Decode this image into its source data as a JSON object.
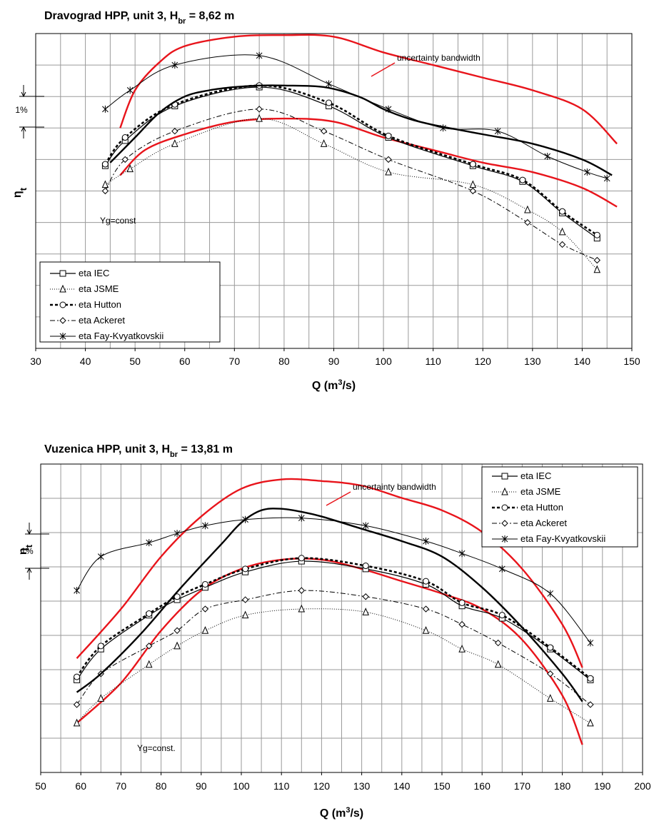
{
  "chart_data": [
    {
      "type": "line",
      "title": "Dravograd HPP, unit 3, H",
      "title_sub": "br",
      "title_tail": " = 8,62 m",
      "xlabel": "Q (m",
      "xlabel_sup": "3",
      "xlabel_tail": "/s)",
      "ylabel": "η",
      "ylabel_sub": "t",
      "xlim": [
        30,
        150
      ],
      "xticks": [
        30,
        40,
        50,
        60,
        70,
        80,
        90,
        100,
        110,
        120,
        130,
        140,
        150
      ],
      "ylim": [
        0,
        10
      ],
      "grid": true,
      "legend_position": "bottom-left",
      "annotations": {
        "bandwidth": "uncertainty bandwidth",
        "scale": "1%",
        "yg": "Yg=const"
      },
      "legend": [
        "eta IEC",
        "eta JSME",
        "eta Hutton",
        "eta Ackeret",
        "eta Fay-Kvyatkovskii"
      ],
      "band_upper": [
        [
          47,
          7.0
        ],
        [
          50,
          8.2
        ],
        [
          55,
          9.1
        ],
        [
          60,
          9.6
        ],
        [
          70,
          9.9
        ],
        [
          80,
          9.95
        ],
        [
          90,
          9.9
        ],
        [
          100,
          9.4
        ],
        [
          110,
          9.0
        ],
        [
          120,
          8.6
        ],
        [
          130,
          8.2
        ],
        [
          140,
          7.6
        ],
        [
          147,
          6.5
        ]
      ],
      "envelope": [
        [
          45,
          5.9
        ],
        [
          50,
          6.7
        ],
        [
          55,
          7.5
        ],
        [
          60,
          8.0
        ],
        [
          65,
          8.2
        ],
        [
          70,
          8.3
        ],
        [
          75,
          8.35
        ],
        [
          80,
          8.35
        ],
        [
          88,
          8.3
        ],
        [
          95,
          8.0
        ],
        [
          100,
          7.6
        ],
        [
          105,
          7.3
        ],
        [
          110,
          7.1
        ],
        [
          120,
          6.8
        ],
        [
          130,
          6.5
        ],
        [
          140,
          6.0
        ],
        [
          146,
          5.5
        ]
      ],
      "band_lower": [
        [
          47,
          5.5
        ],
        [
          52,
          6.3
        ],
        [
          60,
          6.8
        ],
        [
          70,
          7.2
        ],
        [
          80,
          7.3
        ],
        [
          90,
          7.2
        ],
        [
          100,
          6.7
        ],
        [
          110,
          6.3
        ],
        [
          120,
          5.9
        ],
        [
          130,
          5.6
        ],
        [
          140,
          5.1
        ],
        [
          147,
          4.5
        ]
      ],
      "series": [
        {
          "name": "eta IEC",
          "marker": "square",
          "points": [
            [
              44,
              5.8
            ],
            [
              48,
              6.6
            ],
            [
              58,
              7.7
            ],
            [
              75,
              8.3
            ],
            [
              89,
              7.7
            ],
            [
              101,
              6.7
            ],
            [
              118,
              5.8
            ],
            [
              128,
              5.3
            ],
            [
              136,
              4.3
            ],
            [
              143,
              3.5
            ]
          ]
        },
        {
          "name": "eta JSME",
          "marker": "triangle",
          "points": [
            [
              44,
              5.2
            ],
            [
              49,
              5.7
            ],
            [
              58,
              6.5
            ],
            [
              75,
              7.3
            ],
            [
              88,
              6.5
            ],
            [
              101,
              5.6
            ],
            [
              118,
              5.2
            ],
            [
              129,
              4.4
            ],
            [
              136,
              3.7
            ],
            [
              143,
              2.5
            ]
          ]
        },
        {
          "name": "eta Hutton",
          "marker": "circle",
          "points": [
            [
              44,
              5.85
            ],
            [
              48,
              6.7
            ],
            [
              58,
              7.75
            ],
            [
              75,
              8.35
            ],
            [
              89,
              7.8
            ],
            [
              101,
              6.75
            ],
            [
              118,
              5.85
            ],
            [
              128,
              5.35
            ],
            [
              136,
              4.35
            ],
            [
              143,
              3.6
            ]
          ]
        },
        {
          "name": "eta Ackeret",
          "marker": "diamond",
          "points": [
            [
              44,
              5.0
            ],
            [
              48,
              6.0
            ],
            [
              58,
              6.9
            ],
            [
              75,
              7.6
            ],
            [
              88,
              6.9
            ],
            [
              101,
              6.0
            ],
            [
              118,
              5.0
            ],
            [
              129,
              4.0
            ],
            [
              136,
              3.3
            ],
            [
              143,
              2.8
            ]
          ]
        },
        {
          "name": "eta Fay-Kvyatkovskii",
          "marker": "asterisk",
          "points": [
            [
              44,
              7.6
            ],
            [
              49,
              8.2
            ],
            [
              58,
              9.0
            ],
            [
              75,
              9.3
            ],
            [
              89,
              8.4
            ],
            [
              101,
              7.6
            ],
            [
              112,
              7.0
            ],
            [
              123,
              6.9
            ],
            [
              133,
              6.1
            ],
            [
              141,
              5.6
            ],
            [
              145,
              5.4
            ]
          ]
        }
      ]
    },
    {
      "type": "line",
      "title": "Vuzenica HPP, unit 3, H",
      "title_sub": "br",
      "title_tail": " = 13,81 m",
      "xlabel": "Q (m",
      "xlabel_sup": "3",
      "xlabel_tail": "/s)",
      "ylabel": "η",
      "ylabel_sub": "t",
      "xlim": [
        50,
        200
      ],
      "xticks": [
        50,
        60,
        70,
        80,
        90,
        100,
        110,
        120,
        130,
        140,
        150,
        160,
        170,
        180,
        190,
        200
      ],
      "ylim": [
        0,
        10
      ],
      "grid": true,
      "legend_position": "top-right",
      "annotations": {
        "bandwidth": "uncertainty bandwidth",
        "scale": "1%",
        "yg": "Yg=const."
      },
      "legend": [
        "eta IEC",
        "eta JSME",
        "eta Hutton",
        "eta Ackeret",
        "eta Fay-Kvyatkovskii"
      ],
      "band_upper": [
        [
          59,
          3.7
        ],
        [
          70,
          5.3
        ],
        [
          80,
          7.0
        ],
        [
          90,
          8.3
        ],
        [
          100,
          9.2
        ],
        [
          110,
          9.5
        ],
        [
          120,
          9.45
        ],
        [
          130,
          9.3
        ],
        [
          140,
          8.9
        ],
        [
          150,
          8.5
        ],
        [
          160,
          7.8
        ],
        [
          170,
          6.6
        ],
        [
          180,
          4.8
        ],
        [
          185,
          3.4
        ]
      ],
      "envelope": [
        [
          59,
          2.6
        ],
        [
          65,
          3.2
        ],
        [
          75,
          4.5
        ],
        [
          85,
          6.0
        ],
        [
          95,
          7.4
        ],
        [
          100,
          8.1
        ],
        [
          105,
          8.5
        ],
        [
          110,
          8.55
        ],
        [
          115,
          8.45
        ],
        [
          120,
          8.3
        ],
        [
          130,
          7.9
        ],
        [
          140,
          7.5
        ],
        [
          150,
          7.0
        ],
        [
          160,
          6.0
        ],
        [
          170,
          4.7
        ],
        [
          180,
          3.2
        ],
        [
          185,
          2.3
        ]
      ],
      "band_lower": [
        [
          59,
          1.6
        ],
        [
          70,
          2.9
        ],
        [
          80,
          4.6
        ],
        [
          90,
          5.9
        ],
        [
          100,
          6.6
        ],
        [
          110,
          6.9
        ],
        [
          120,
          6.9
        ],
        [
          130,
          6.6
        ],
        [
          140,
          6.2
        ],
        [
          150,
          5.8
        ],
        [
          160,
          5.3
        ],
        [
          170,
          4.3
        ],
        [
          180,
          2.5
        ],
        [
          185,
          0.9
        ]
      ],
      "series": [
        {
          "name": "eta IEC",
          "marker": "square",
          "points": [
            [
              59,
              3.0
            ],
            [
              65,
              4.0
            ],
            [
              77,
              5.1
            ],
            [
              84,
              5.6
            ],
            [
              91,
              6.0
            ],
            [
              101,
              6.5
            ],
            [
              115,
              6.85
            ],
            [
              131,
              6.6
            ],
            [
              146,
              6.1
            ],
            [
              155,
              5.4
            ],
            [
              165,
              5.0
            ],
            [
              177,
              4.0
            ],
            [
              187,
              3.0
            ]
          ]
        },
        {
          "name": "eta JSME",
          "marker": "triangle",
          "points": [
            [
              59,
              1.6
            ],
            [
              65,
              2.4
            ],
            [
              77,
              3.5
            ],
            [
              84,
              4.1
            ],
            [
              91,
              4.6
            ],
            [
              101,
              5.1
            ],
            [
              115,
              5.3
            ],
            [
              131,
              5.2
            ],
            [
              146,
              4.6
            ],
            [
              155,
              4.0
            ],
            [
              164,
              3.5
            ],
            [
              177,
              2.4
            ],
            [
              187,
              1.6
            ]
          ]
        },
        {
          "name": "eta Hutton",
          "marker": "circle",
          "points": [
            [
              59,
              3.1
            ],
            [
              65,
              4.1
            ],
            [
              77,
              5.15
            ],
            [
              84,
              5.7
            ],
            [
              91,
              6.1
            ],
            [
              101,
              6.6
            ],
            [
              115,
              6.95
            ],
            [
              131,
              6.7
            ],
            [
              146,
              6.2
            ],
            [
              155,
              5.5
            ],
            [
              165,
              5.1
            ],
            [
              177,
              4.05
            ],
            [
              187,
              3.05
            ]
          ]
        },
        {
          "name": "eta Ackeret",
          "marker": "diamond",
          "points": [
            [
              59,
              2.2
            ],
            [
              65,
              3.2
            ],
            [
              77,
              4.1
            ],
            [
              84,
              4.6
            ],
            [
              91,
              5.3
            ],
            [
              101,
              5.6
            ],
            [
              115,
              5.9
            ],
            [
              131,
              5.7
            ],
            [
              146,
              5.3
            ],
            [
              155,
              4.8
            ],
            [
              164,
              4.2
            ],
            [
              177,
              3.2
            ],
            [
              187,
              2.2
            ]
          ]
        },
        {
          "name": "eta Fay-Kvyatkovskii",
          "marker": "asterisk",
          "points": [
            [
              59,
              5.9
            ],
            [
              65,
              7.0
            ],
            [
              77,
              7.45
            ],
            [
              84,
              7.75
            ],
            [
              91,
              8.0
            ],
            [
              101,
              8.2
            ],
            [
              115,
              8.25
            ],
            [
              131,
              8.0
            ],
            [
              146,
              7.5
            ],
            [
              155,
              7.1
            ],
            [
              165,
              6.6
            ],
            [
              177,
              5.8
            ],
            [
              187,
              4.2
            ]
          ]
        }
      ]
    }
  ]
}
